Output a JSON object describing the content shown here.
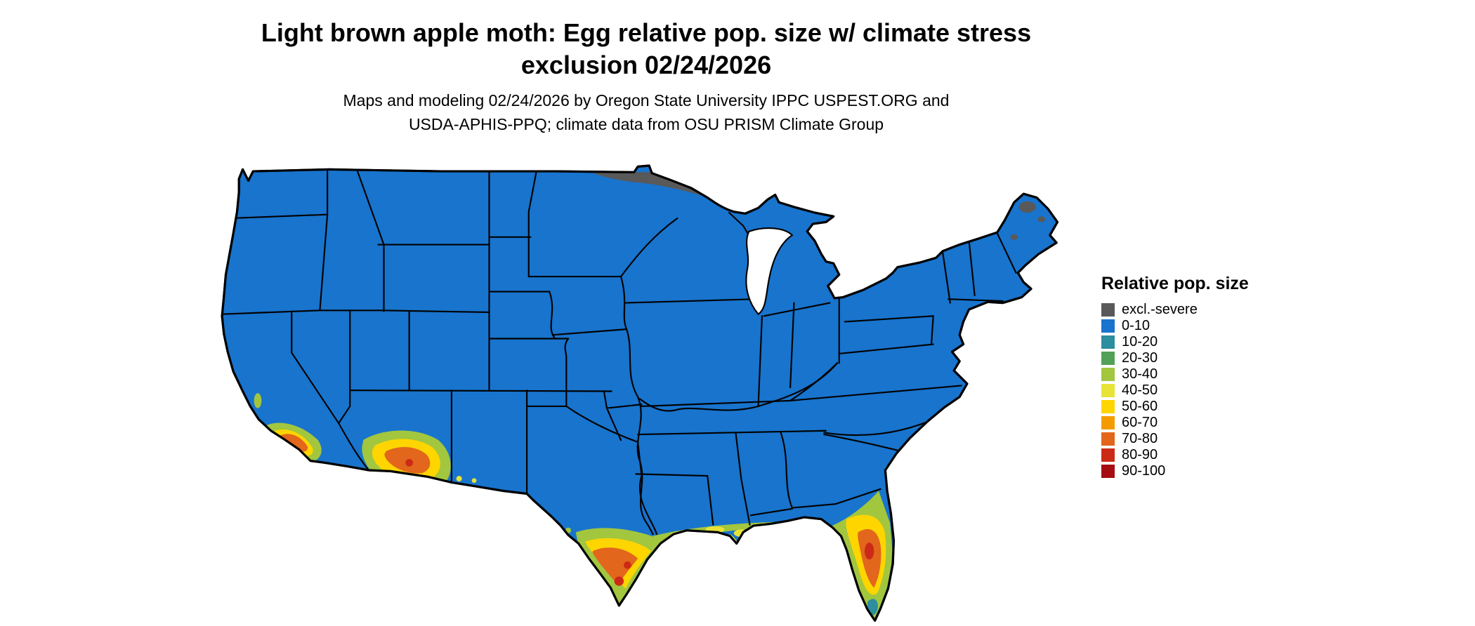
{
  "title": {
    "lines": [
      "Light brown apple moth: Egg relative pop. size w/ climate stress",
      "exclusion 02/24/2026"
    ]
  },
  "subtitle": {
    "lines": [
      "Maps and modeling 02/24/2026 by Oregon State University IPPC USPEST.ORG and",
      "USDA-APHIS-PPQ; climate data from OSU PRISM Climate Group"
    ]
  },
  "legend": {
    "title": "Relative pop. size",
    "items": [
      {
        "key": "excl",
        "label": "excl.-severe",
        "color": "#595959"
      },
      {
        "key": "b0",
        "label": "0-10",
        "color": "#1874CD"
      },
      {
        "key": "b10",
        "label": "10-20",
        "color": "#2C8E9E"
      },
      {
        "key": "b20",
        "label": "20-30",
        "color": "#52A157"
      },
      {
        "key": "b30",
        "label": "30-40",
        "color": "#A2C63E"
      },
      {
        "key": "b40",
        "label": "40-50",
        "color": "#E8E337"
      },
      {
        "key": "b50",
        "label": "50-60",
        "color": "#FFD500"
      },
      {
        "key": "b60",
        "label": "60-70",
        "color": "#F49B00"
      },
      {
        "key": "b70",
        "label": "70-80",
        "color": "#E2661C"
      },
      {
        "key": "b80",
        "label": "80-90",
        "color": "#CB2B16"
      },
      {
        "key": "b90",
        "label": "90-100",
        "color": "#A50D12"
      }
    ]
  },
  "map": {
    "region": "contiguous United States",
    "border_color": "#000000",
    "water_color": "#FFFFFF",
    "base_key": "b0"
  }
}
